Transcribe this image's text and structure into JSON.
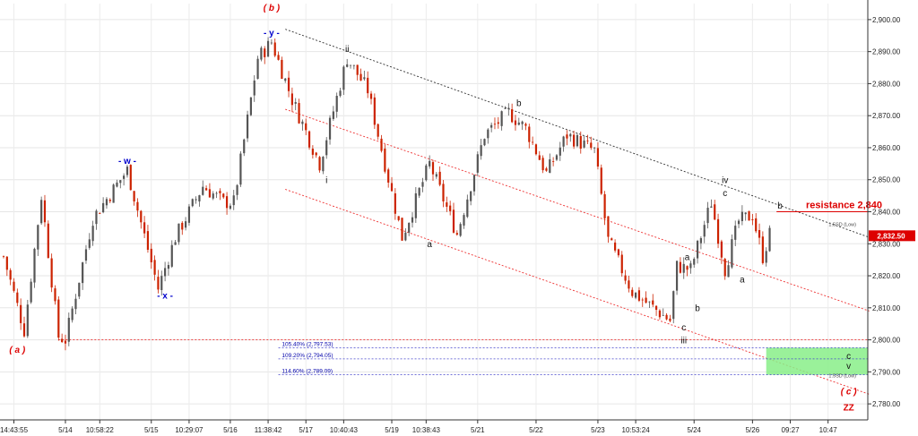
{
  "chart_data": {
    "type": "candlestick",
    "instrument_note": "",
    "ylim": [
      2775,
      2905
    ],
    "y_ticks": [
      2780,
      2790,
      2800,
      2810,
      2820,
      2830,
      2840,
      2850,
      2860,
      2870,
      2880,
      2890,
      2900
    ],
    "y_tick_labels": [
      "2,780.00",
      "2,790.00",
      "2,800.00",
      "2,810.00",
      "2,820.00",
      "2,830.00",
      "2,840.00",
      "2,850.00",
      "2,860.00",
      "2,870.00",
      "2,880.00",
      "2,890.00",
      "2,900.00"
    ],
    "x_labels": [
      "14:43:55",
      "5/14",
      "10:58:22",
      "5/15",
      "10:29:07",
      "5/16",
      "11:38:42",
      "5/17",
      "10:40:43",
      "5/19",
      "10:38:43",
      "5/21",
      "5/22",
      "5/23",
      "10:53:24",
      "5/24",
      "5/26",
      "09:27",
      "10:47"
    ],
    "x_label_index": [
      3,
      18,
      28,
      43,
      54,
      66,
      77,
      88,
      99,
      113,
      123,
      138,
      155,
      173,
      184,
      201,
      218,
      229,
      240
    ],
    "grid": true,
    "price_path": [
      [
        0,
        2826
      ],
      [
        6,
        2803
      ],
      [
        11,
        2845
      ],
      [
        16,
        2801
      ],
      [
        18,
        2800
      ],
      [
        26,
        2838
      ],
      [
        36,
        2853
      ],
      [
        45,
        2816
      ],
      [
        50,
        2832
      ],
      [
        58,
        2848
      ],
      [
        64,
        2843
      ],
      [
        67,
        2843
      ],
      [
        74,
        2888
      ],
      [
        78,
        2893
      ],
      [
        84,
        2875
      ],
      [
        92,
        2855
      ],
      [
        100,
        2888
      ],
      [
        106,
        2878
      ],
      [
        116,
        2832
      ],
      [
        124,
        2855
      ],
      [
        132,
        2833
      ],
      [
        140,
        2864
      ],
      [
        147,
        2871
      ],
      [
        152,
        2866
      ],
      [
        158,
        2852
      ],
      [
        164,
        2864
      ],
      [
        172,
        2859
      ],
      [
        176,
        2831
      ],
      [
        183,
        2815
      ],
      [
        194,
        2806
      ],
      [
        196,
        2823
      ],
      [
        200,
        2822
      ],
      [
        206,
        2843
      ],
      [
        210,
        2822
      ],
      [
        214,
        2837
      ],
      [
        218,
        2839
      ],
      [
        221,
        2826
      ],
      [
        223,
        2833
      ]
    ],
    "last_price": "2,832.50",
    "candle_color_up": "#555555",
    "candle_color_down": "#cc2200",
    "wave_labels": [
      {
        "text": "( a )",
        "i": 4,
        "price": 2799,
        "color": "#dd0000",
        "side": "below"
      },
      {
        "text": "- w -",
        "i": 36,
        "price": 2853,
        "color": "#0000cc",
        "side": "above"
      },
      {
        "text": "- x -",
        "i": 47,
        "price": 2816,
        "color": "#0000cc",
        "side": "below"
      },
      {
        "text": "( b )",
        "i": 78,
        "price": 2900,
        "color": "#dd0000",
        "side": "above2"
      },
      {
        "text": "- y -",
        "i": 78,
        "price": 2893,
        "color": "#0000cc",
        "side": "above"
      },
      {
        "text": "ii",
        "i": 100,
        "price": 2888,
        "color": "#111111",
        "side": "above"
      },
      {
        "text": "i",
        "i": 94,
        "price": 2852,
        "color": "#111111",
        "side": "below"
      },
      {
        "text": "a",
        "i": 124,
        "price": 2832,
        "color": "#111111",
        "side": "below"
      },
      {
        "text": "b",
        "i": 150,
        "price": 2871,
        "color": "#111111",
        "side": "above"
      },
      {
        "text": "c",
        "i": 198,
        "price": 2806,
        "color": "#111111",
        "side": "below"
      },
      {
        "text": "iii",
        "i": 198,
        "price": 2802,
        "color": "#111111",
        "side": "below"
      },
      {
        "text": "a",
        "i": 199,
        "price": 2823,
        "color": "#111111",
        "side": "above"
      },
      {
        "text": "b",
        "i": 202,
        "price": 2812,
        "color": "#111111",
        "side": "below"
      },
      {
        "text": "c",
        "i": 210,
        "price": 2843,
        "color": "#111111",
        "side": "above"
      },
      {
        "text": "iv",
        "i": 210,
        "price": 2847,
        "color": "#111111",
        "side": "above"
      },
      {
        "text": "a",
        "i": 215,
        "price": 2821,
        "color": "#111111",
        "side": "below"
      },
      {
        "text": "b",
        "i": 226,
        "price": 2839,
        "color": "#111111",
        "side": "above"
      },
      {
        "text": "c",
        "i": 246,
        "price": 2792,
        "color": "#111111",
        "side": "above"
      },
      {
        "text": "v",
        "i": 246,
        "price": 2789,
        "color": "#111111",
        "side": "above"
      },
      {
        "text": "( c )",
        "i": 246,
        "price": 2786,
        "color": "#dd0000",
        "side": "below"
      },
      {
        "text": "ZZ",
        "i": 246,
        "price": 2781,
        "color": "#dd0000",
        "side": "below"
      }
    ],
    "resistance": {
      "label": "resistance 2,840",
      "price": 2840,
      "color": "#dd0000"
    },
    "fib_levels": [
      {
        "label": "105.40% (2,797.53)",
        "price": 2797.53
      },
      {
        "label": "109.20% (2,794.05)",
        "price": 2794.05
      },
      {
        "label": "114.60% (2,789.09)",
        "price": 2789.09
      }
    ],
    "low_a_price": 2800,
    "target_zone": {
      "top": 2797.53,
      "bottom": 2789.09,
      "color": "#88ee88"
    },
    "sd_labels": [
      {
        "text": "1.5SD (Low)",
        "price": 2835.5
      },
      {
        "text": "1.5SD (Low)",
        "price": 2788.3
      }
    ]
  }
}
